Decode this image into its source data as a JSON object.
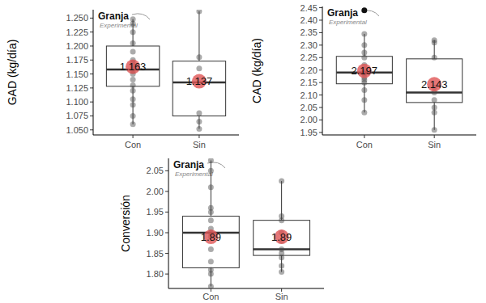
{
  "chart_data": [
    {
      "type": "box",
      "y_label": "GAD (kg/día)",
      "annotations": [
        "Granja",
        "Experimental"
      ],
      "categories": [
        "Con",
        "Sin"
      ],
      "data_labels": true,
      "ylim": [
        1.041,
        1.265
      ],
      "yticks": [
        {
          "value": 1.05,
          "label": "1.050"
        },
        {
          "value": 1.075,
          "label": "1.075"
        },
        {
          "value": 1.1,
          "label": "1.100"
        },
        {
          "value": 1.125,
          "label": "1.125"
        },
        {
          "value": 1.15,
          "label": "1.150"
        },
        {
          "value": 1.175,
          "label": "1.175"
        },
        {
          "value": 1.2,
          "label": "1.200"
        },
        {
          "value": 1.225,
          "label": "1.225"
        },
        {
          "value": 1.25,
          "label": "1.250"
        }
      ],
      "boxes": [
        {
          "min": 1.06,
          "q1": 1.128,
          "median": 1.158,
          "q3": 1.2,
          "max": 1.248,
          "mean": 1.163,
          "outliers": [],
          "points": [
            1.248,
            1.24,
            1.225,
            1.205,
            1.19,
            1.175,
            1.17,
            1.165,
            1.16,
            1.155,
            1.15,
            1.14,
            1.13,
            1.12,
            1.105,
            1.095,
            1.075,
            1.06
          ]
        },
        {
          "min": 1.052,
          "q1": 1.075,
          "median": 1.135,
          "q3": 1.173,
          "max": 1.262,
          "mean": 1.137,
          "outliers": [],
          "points": [
            1.262,
            1.18,
            1.16,
            1.08,
            1.065,
            1.052
          ]
        }
      ]
    },
    {
      "type": "box",
      "y_label": "CAD (kg/día)",
      "annotations": [
        "Granja",
        "Experimental"
      ],
      "categories": [
        "Con",
        "Sin"
      ],
      "data_labels": true,
      "ylim": [
        1.94,
        2.455
      ],
      "yticks": [
        1.95,
        {
          "value": 2,
          "label": "2.00"
        },
        2.05,
        {
          "value": 2.1,
          "label": "2.10"
        },
        2.15,
        {
          "value": 2.2,
          "label": "2.20"
        },
        2.25,
        {
          "value": 2.3,
          "label": "2.30"
        },
        2.35,
        {
          "value": 2.4,
          "label": "2.40"
        },
        2.45
      ],
      "boxes": [
        {
          "min": 2.03,
          "q1": 2.145,
          "median": 2.19,
          "q3": 2.255,
          "max": 2.345,
          "mean": 2.197,
          "outliers": [
            2.44
          ],
          "points": [
            2.345,
            2.3,
            2.27,
            2.25,
            2.22,
            2.2,
            2.19,
            2.185,
            2.17,
            2.16,
            2.15,
            2.12,
            2.08,
            2.03
          ]
        },
        {
          "min": 1.96,
          "q1": 2.07,
          "median": 2.11,
          "q3": 2.245,
          "max": 2.32,
          "mean": 2.143,
          "outliers": [],
          "points": [
            2.32,
            2.31,
            2.25,
            2.13,
            2.11,
            2.08,
            2.05,
            2.03,
            1.96
          ]
        }
      ]
    },
    {
      "type": "box",
      "y_label": "Conversión",
      "annotations": [
        "Granja",
        "Experimental"
      ],
      "categories": [
        "Con",
        "Sin"
      ],
      "data_labels": true,
      "ylim": [
        1.765,
        2.08
      ],
      "yticks": [
        {
          "value": 1.8,
          "label": "1.80"
        },
        1.85,
        {
          "value": 1.9,
          "label": "1.90"
        },
        1.95,
        {
          "value": 2,
          "label": "2.00"
        },
        2.05
      ],
      "boxes": [
        {
          "min": 1.77,
          "q1": 1.815,
          "median": 1.9,
          "q3": 1.94,
          "max": 2.075,
          "mean": 1.89,
          "outliers": [],
          "points": [
            2.075,
            2.05,
            2.01,
            1.96,
            1.95,
            1.93,
            1.91,
            1.9,
            1.89,
            1.86,
            1.83,
            1.81,
            1.8,
            1.77
          ]
        },
        {
          "min": 1.805,
          "q1": 1.845,
          "median": 1.86,
          "q3": 1.93,
          "max": 2.025,
          "mean": 1.89,
          "outliers": [],
          "points": [
            2.025,
            1.94,
            1.93,
            1.9,
            1.88,
            1.86,
            1.85,
            1.84,
            1.82,
            1.805
          ]
        }
      ]
    }
  ]
}
